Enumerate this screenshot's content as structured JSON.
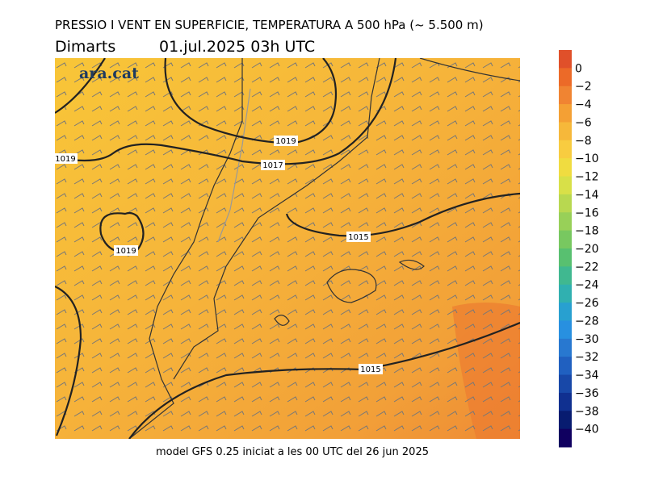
{
  "header": {
    "title": "PRESSIO I VENT EN SUPERFICIE, TEMPERATURA A 500 hPa (~ 5.500 m)",
    "day": "Dimarts",
    "datetime": "01.jul.2025 03h UTC"
  },
  "map": {
    "logo": "ara.cat",
    "contour_labels": [
      "1019",
      "1017",
      "1019",
      "1019",
      "1015",
      "1015"
    ]
  },
  "colorbar": {
    "labels": [
      "0",
      "−2",
      "−4",
      "−6",
      "−8",
      "−10",
      "−12",
      "−14",
      "−16",
      "−18",
      "−20",
      "−22",
      "−24",
      "−26",
      "−28",
      "−30",
      "−32",
      "−34",
      "−36",
      "−38",
      "−40"
    ],
    "colors": [
      "#e0502a",
      "#ec6a28",
      "#f08432",
      "#f4a034",
      "#f6b83a",
      "#f8cc40",
      "#f0dc40",
      "#d8e048",
      "#b8d850",
      "#98d058",
      "#78c860",
      "#58c070",
      "#40b890",
      "#30b0b0",
      "#28a0d0",
      "#2890e0",
      "#2878d0",
      "#2060c0",
      "#1848a8",
      "#103090",
      "#081c70",
      "#100060"
    ]
  },
  "footer": "model GFS 0.25 iniciat a les 00 UTC del 26 jun 2025"
}
